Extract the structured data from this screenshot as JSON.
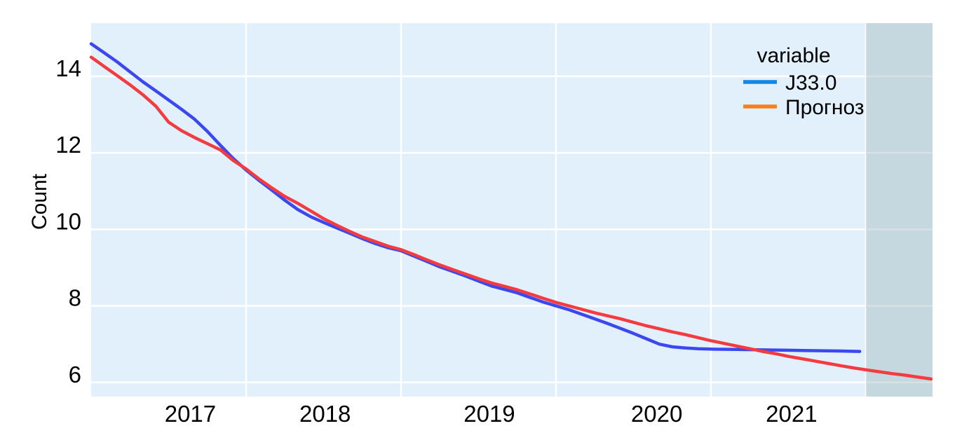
{
  "page": {
    "background": "#ffffff"
  },
  "chart_data": {
    "type": "line",
    "title": "",
    "xlabel": "",
    "ylabel": "Count",
    "legend_title": "variable",
    "legend_position": "top-right-inside",
    "grid": true,
    "plot_bg": "#e1f0fa",
    "grid_color": "#ffffff",
    "x_range": [
      2016.0,
      2021.43
    ],
    "y_range": [
      5.63,
      15.39
    ],
    "y_ticks": [
      6,
      8,
      10,
      12,
      14
    ],
    "x_gridlines": [
      2017,
      2018,
      2019,
      2020,
      2021
    ],
    "x_tick_labels": [
      {
        "label": "2017",
        "x": 2016.64
      },
      {
        "label": "2018",
        "x": 2017.51
      },
      {
        "label": "2019",
        "x": 2018.57
      },
      {
        "label": "2020",
        "x": 2019.65
      },
      {
        "label": "2021",
        "x": 2020.52
      }
    ],
    "shaded_region": {
      "x_start": 2021.0,
      "x_end": 2021.43,
      "color": "#9fb6ba",
      "opacity": 0.42,
      "meaning": "forecast-only band at right edge"
    },
    "series": [
      {
        "name": "J33.0",
        "line_color": "#3c48ef",
        "legend_color": "#1287e8",
        "x": [
          2016.0,
          2016.083,
          2016.167,
          2016.25,
          2016.333,
          2016.417,
          2016.5,
          2016.583,
          2016.667,
          2016.75,
          2016.833,
          2016.917,
          2017.0,
          2017.083,
          2017.167,
          2017.25,
          2017.333,
          2017.417,
          2017.5,
          2017.583,
          2017.667,
          2017.75,
          2017.833,
          2017.917,
          2018.0,
          2018.083,
          2018.167,
          2018.25,
          2018.333,
          2018.417,
          2018.5,
          2018.583,
          2018.667,
          2018.75,
          2018.833,
          2018.917,
          2019.0,
          2019.083,
          2019.167,
          2019.25,
          2019.333,
          2019.417,
          2019.5,
          2019.583,
          2019.667,
          2019.75,
          2019.833,
          2019.917,
          2020.0,
          2020.167,
          2020.333,
          2020.5,
          2020.667,
          2020.833,
          2020.96
        ],
        "y": [
          14.85,
          14.62,
          14.38,
          14.12,
          13.86,
          13.62,
          13.38,
          13.14,
          12.88,
          12.56,
          12.2,
          11.85,
          11.55,
          11.28,
          11.02,
          10.76,
          10.52,
          10.33,
          10.18,
          10.04,
          9.9,
          9.76,
          9.63,
          9.52,
          9.44,
          9.3,
          9.16,
          9.02,
          8.9,
          8.78,
          8.65,
          8.52,
          8.43,
          8.34,
          8.22,
          8.1,
          8.0,
          7.9,
          7.78,
          7.66,
          7.54,
          7.41,
          7.28,
          7.14,
          7.0,
          6.93,
          6.9,
          6.88,
          6.87,
          6.86,
          6.85,
          6.84,
          6.83,
          6.82,
          6.81
        ]
      },
      {
        "name": "Прогноз",
        "line_color": "#f43b40",
        "legend_color": "#fd7e14",
        "x": [
          2016.0,
          2016.083,
          2016.167,
          2016.25,
          2016.333,
          2016.417,
          2016.5,
          2016.583,
          2016.667,
          2016.75,
          2016.833,
          2016.917,
          2017.0,
          2017.083,
          2017.167,
          2017.25,
          2017.333,
          2017.417,
          2017.5,
          2017.583,
          2017.667,
          2017.75,
          2017.833,
          2017.917,
          2018.0,
          2018.083,
          2018.167,
          2018.25,
          2018.333,
          2018.417,
          2018.5,
          2018.583,
          2018.667,
          2018.75,
          2018.833,
          2018.917,
          2019.0,
          2019.083,
          2019.167,
          2019.25,
          2019.333,
          2019.417,
          2019.5,
          2019.583,
          2019.667,
          2019.75,
          2019.833,
          2019.917,
          2020.0,
          2020.083,
          2020.167,
          2020.25,
          2020.333,
          2020.417,
          2020.5,
          2020.583,
          2020.667,
          2020.75,
          2020.833,
          2020.917,
          2021.0,
          2021.083,
          2021.167,
          2021.25,
          2021.333,
          2021.42
        ],
        "y": [
          14.5,
          14.26,
          14.02,
          13.78,
          13.52,
          13.22,
          12.8,
          12.58,
          12.4,
          12.24,
          12.08,
          11.8,
          11.58,
          11.32,
          11.08,
          10.86,
          10.68,
          10.48,
          10.28,
          10.11,
          9.95,
          9.8,
          9.68,
          9.56,
          9.47,
          9.34,
          9.2,
          9.07,
          8.95,
          8.83,
          8.71,
          8.6,
          8.51,
          8.42,
          8.31,
          8.2,
          8.09,
          8.0,
          7.91,
          7.82,
          7.74,
          7.66,
          7.57,
          7.48,
          7.4,
          7.32,
          7.25,
          7.17,
          7.09,
          7.02,
          6.95,
          6.88,
          6.81,
          6.75,
          6.68,
          6.62,
          6.56,
          6.5,
          6.44,
          6.38,
          6.33,
          6.28,
          6.23,
          6.19,
          6.14,
          6.09
        ]
      }
    ]
  }
}
